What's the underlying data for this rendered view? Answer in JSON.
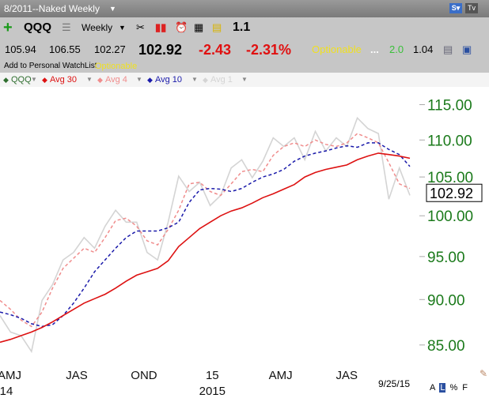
{
  "window": {
    "title": "8/2011--Naked Weekly",
    "symbol": "QQQ",
    "period": "Weekly",
    "zoom": "1.1",
    "open": "105.94",
    "high": "106.55",
    "low": "102.27",
    "last": "102.92",
    "change": "-2.43",
    "change_pct": "-2.31%",
    "optionable": "Optionable",
    "dots": "...",
    "rating": "2.0",
    "ratio": "1.04",
    "watchlist": "Add to Personal WatchList",
    "optionable_small": "Optionable",
    "date": "9/25/15",
    "modes": [
      "A",
      "L",
      "%",
      "F"
    ]
  },
  "chart_data": {
    "type": "line",
    "log_scale": true,
    "legend_symbol": "QQQ",
    "last_value": 102.92,
    "x": [
      0,
      1,
      2,
      3,
      4,
      5,
      6,
      7,
      8,
      9,
      10,
      11,
      12,
      13,
      14,
      15,
      16,
      17,
      18,
      19,
      20,
      21,
      22,
      23,
      24,
      25,
      26,
      27,
      28,
      29,
      30,
      31,
      32,
      33,
      34,
      35,
      36,
      37,
      38,
      39
    ],
    "xlim": [
      0,
      39
    ],
    "xticks": [
      {
        "value": 0.9,
        "label": "AMJ"
      },
      {
        "value": 7.3,
        "label": "JAS"
      },
      {
        "value": 13.7,
        "label": "OND"
      },
      {
        "value": 20.2,
        "label": "15"
      },
      {
        "value": 26.7,
        "label": "AMJ"
      },
      {
        "value": 33,
        "label": "JAS"
      }
    ],
    "year_ticks": [
      {
        "value": 0.6,
        "label": "14"
      },
      {
        "value": 20.2,
        "label": "2015"
      }
    ],
    "ylim": [
      82.9,
      117.6
    ],
    "yticks": [
      {
        "value": 85,
        "label": "85.00"
      },
      {
        "value": 90,
        "label": "90.00"
      },
      {
        "value": 95,
        "label": "95.00"
      },
      {
        "value": 100,
        "label": "100.00"
      },
      {
        "value": 105,
        "label": "105.00"
      },
      {
        "value": 110,
        "label": "110.00"
      },
      {
        "value": 115,
        "label": "115.00"
      }
    ],
    "series": [
      {
        "name": "Avg 1",
        "color": "#d4d4d4",
        "dash": false,
        "values": [
          88.2,
          86.4,
          86.0,
          84.3,
          89.9,
          91.7,
          94.6,
          95.5,
          97.3,
          96.0,
          98.7,
          100.7,
          99.2,
          99.2,
          95.5,
          94.6,
          99.2,
          105.1,
          103.1,
          104.3,
          101.3,
          102.6,
          106.2,
          107.3,
          104.9,
          107.1,
          110.3,
          109.1,
          110.3,
          107.3,
          111.2,
          108.5,
          110.3,
          109.1,
          113.1,
          111.6,
          110.9,
          102.1,
          106.2,
          102.6
        ]
      },
      {
        "name": "Avg 4",
        "color": "#f08c8c",
        "dash": true,
        "values": [
          89.9,
          88.9,
          87.7,
          87.0,
          88.6,
          91.3,
          93.6,
          94.8,
          96.0,
          95.5,
          97.3,
          99.4,
          99.7,
          98.7,
          96.9,
          96.4,
          98.3,
          100.7,
          104.1,
          104.3,
          103.1,
          102.6,
          104.1,
          105.7,
          106.0,
          105.7,
          107.9,
          109.1,
          109.6,
          109.1,
          110.0,
          109.4,
          109.1,
          109.6,
          110.9,
          110.3,
          109.6,
          106.9,
          104.1,
          103.5
        ]
      },
      {
        "name": "Avg 10",
        "color": "#1a1aaa",
        "dash": true,
        "values": [
          88.6,
          88.3,
          87.9,
          87.3,
          87.0,
          87.2,
          88.2,
          89.6,
          91.3,
          93.2,
          94.6,
          96.0,
          97.3,
          98.1,
          98.1,
          98.1,
          98.5,
          99.2,
          101.7,
          103.3,
          103.5,
          103.4,
          103.1,
          103.5,
          104.3,
          105.0,
          105.4,
          106.0,
          107.1,
          107.8,
          108.2,
          108.5,
          108.9,
          109.2,
          109.0,
          109.6,
          109.6,
          108.7,
          108.0,
          106.4
        ]
      },
      {
        "name": "Avg 30",
        "color": "#dd1111",
        "dash": false,
        "values": [
          85.3,
          85.6,
          86.0,
          86.4,
          86.9,
          87.5,
          88.2,
          88.9,
          89.6,
          90.1,
          90.6,
          91.3,
          92.1,
          92.8,
          93.2,
          93.6,
          94.5,
          96.2,
          97.3,
          98.4,
          99.2,
          100.0,
          100.6,
          101.0,
          101.6,
          102.3,
          102.8,
          103.4,
          104.0,
          105.0,
          105.6,
          106.0,
          106.3,
          106.6,
          107.3,
          107.8,
          108.2,
          108.0,
          107.8,
          107.5
        ]
      }
    ]
  }
}
